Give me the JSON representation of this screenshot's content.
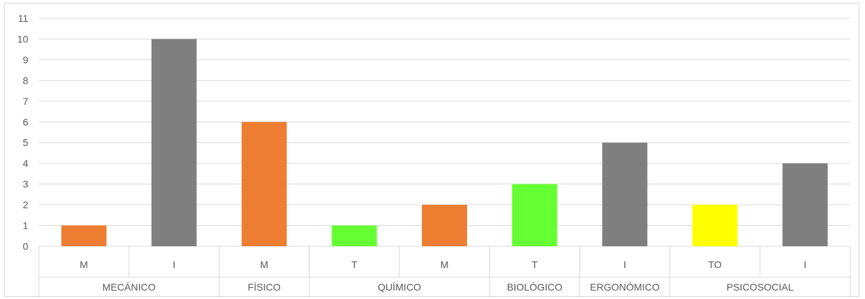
{
  "chart_data": {
    "type": "bar",
    "ylim": [
      0,
      11
    ],
    "y_ticks": [
      0,
      1,
      2,
      3,
      4,
      5,
      6,
      7,
      8,
      9,
      10,
      11
    ],
    "grid": true,
    "legend": "none",
    "groups": [
      {
        "name": "MECÁNICO",
        "bars": [
          {
            "label": "M",
            "value": 1,
            "color": "#ED7D31"
          },
          {
            "label": "I",
            "value": 10,
            "color": "#7F7F7F"
          }
        ]
      },
      {
        "name": "FÍSICO",
        "bars": [
          {
            "label": "M",
            "value": 6,
            "color": "#ED7D31"
          }
        ]
      },
      {
        "name": "QUÍMICO",
        "bars": [
          {
            "label": "T",
            "value": 1,
            "color": "#66FF33"
          },
          {
            "label": "M",
            "value": 2,
            "color": "#ED7D31"
          }
        ]
      },
      {
        "name": "BIOLÓGICO",
        "bars": [
          {
            "label": "T",
            "value": 3,
            "color": "#66FF33"
          }
        ]
      },
      {
        "name": "ERGONÓMICO",
        "bars": [
          {
            "label": "I",
            "value": 5,
            "color": "#7F7F7F"
          }
        ]
      },
      {
        "name": "PSICOSOCIAL",
        "bars": [
          {
            "label": "TO",
            "value": 2,
            "color": "#FFFF00"
          },
          {
            "label": "I",
            "value": 4,
            "color": "#7F7F7F"
          }
        ]
      }
    ]
  },
  "colors": {
    "gridline": "#d9d9d9",
    "axis_text": "#595959"
  }
}
